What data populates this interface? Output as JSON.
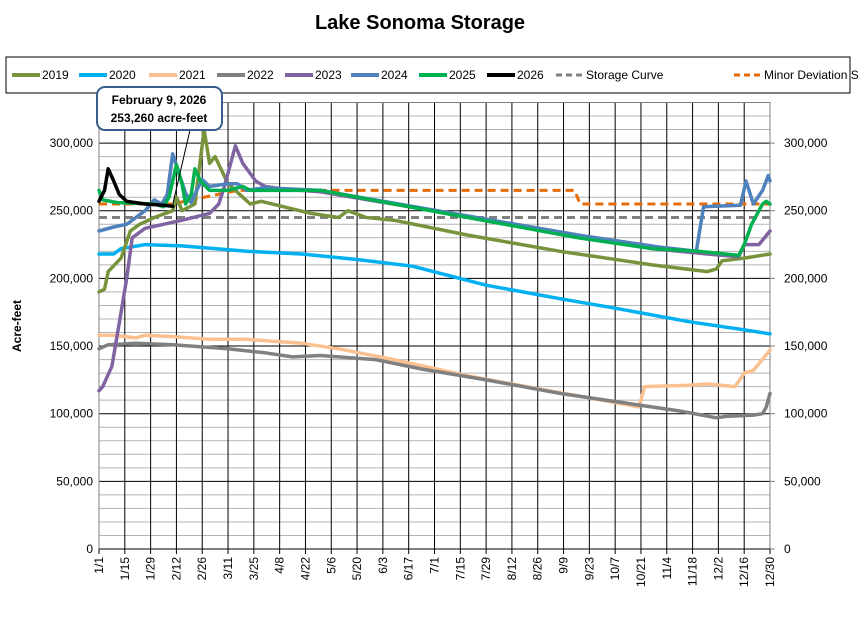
{
  "chart_data": {
    "type": "line",
    "title": "Lake Sonoma Storage",
    "ylabel": "Acre-feet",
    "xlabel": "",
    "ylim": [
      0,
      330000
    ],
    "y_ticks": [
      0,
      50000,
      100000,
      150000,
      200000,
      250000,
      300000
    ],
    "y_tick_labels": [
      "0",
      "50,000",
      "100,000",
      "150,000",
      "200,000",
      "250,000",
      "300,000"
    ],
    "x_unit": "day of year",
    "x_ticks": [
      "1/1",
      "1/15",
      "1/29",
      "2/12",
      "2/26",
      "3/11",
      "3/25",
      "4/8",
      "4/22",
      "5/6",
      "5/20",
      "6/3",
      "6/17",
      "7/1",
      "7/15",
      "7/29",
      "8/12",
      "8/26",
      "9/9",
      "9/23",
      "10/7",
      "10/21",
      "11/4",
      "11/18",
      "12/2",
      "12/16",
      "12/30"
    ],
    "grid": true,
    "legend_position": "top",
    "annotation": {
      "line1": "February 9, 2026",
      "line2": "253,260 acre-feet",
      "x": 40,
      "y": 253260
    },
    "series": [
      {
        "name": "2019",
        "color": "#77933c",
        "dash": false,
        "points": [
          [
            0,
            190000
          ],
          [
            3,
            192000
          ],
          [
            5,
            205000
          ],
          [
            12,
            215000
          ],
          [
            17,
            235000
          ],
          [
            22,
            240000
          ],
          [
            30,
            245000
          ],
          [
            40,
            250000
          ],
          [
            42,
            260000
          ],
          [
            45,
            250000
          ],
          [
            52,
            255000
          ],
          [
            57,
            310000
          ],
          [
            60,
            285000
          ],
          [
            63,
            290000
          ],
          [
            70,
            270000
          ],
          [
            78,
            260000
          ],
          [
            82,
            255000
          ],
          [
            88,
            257000
          ],
          [
            100,
            253000
          ],
          [
            115,
            248000
          ],
          [
            130,
            245000
          ],
          [
            135,
            250000
          ],
          [
            145,
            245000
          ],
          [
            160,
            243000
          ],
          [
            200,
            232000
          ],
          [
            250,
            220000
          ],
          [
            300,
            210000
          ],
          [
            330,
            205000
          ],
          [
            335,
            207000
          ],
          [
            338,
            213000
          ],
          [
            350,
            215000
          ],
          [
            364,
            218000
          ]
        ]
      },
      {
        "name": "2020",
        "color": "#00b0f0",
        "dash": false,
        "points": [
          [
            0,
            218000
          ],
          [
            8,
            218000
          ],
          [
            12,
            222000
          ],
          [
            25,
            225000
          ],
          [
            45,
            224000
          ],
          [
            80,
            220000
          ],
          [
            110,
            218000
          ],
          [
            140,
            214000
          ],
          [
            170,
            209000
          ],
          [
            210,
            195000
          ],
          [
            250,
            185000
          ],
          [
            280,
            178000
          ],
          [
            320,
            168000
          ],
          [
            350,
            162000
          ],
          [
            364,
            159000
          ]
        ]
      },
      {
        "name": "2021",
        "color": "#fac090",
        "dash": false,
        "points": [
          [
            0,
            158000
          ],
          [
            8,
            158000
          ],
          [
            20,
            156000
          ],
          [
            25,
            158000
          ],
          [
            40,
            157000
          ],
          [
            60,
            155000
          ],
          [
            80,
            155000
          ],
          [
            110,
            152000
          ],
          [
            130,
            148000
          ],
          [
            160,
            140000
          ],
          [
            200,
            128000
          ],
          [
            240,
            118000
          ],
          [
            293,
            105000
          ],
          [
            296,
            120000
          ],
          [
            320,
            121000
          ],
          [
            330,
            122000
          ],
          [
            345,
            120000
          ],
          [
            350,
            130000
          ],
          [
            355,
            132000
          ],
          [
            364,
            147000
          ]
        ]
      },
      {
        "name": "2022",
        "color": "#808080",
        "dash": false,
        "points": [
          [
            0,
            148000
          ],
          [
            5,
            151000
          ],
          [
            20,
            152000
          ],
          [
            40,
            151000
          ],
          [
            70,
            148000
          ],
          [
            90,
            145000
          ],
          [
            105,
            142000
          ],
          [
            120,
            143000
          ],
          [
            150,
            140000
          ],
          [
            175,
            133000
          ],
          [
            210,
            125000
          ],
          [
            250,
            115000
          ],
          [
            285,
            108000
          ],
          [
            315,
            102000
          ],
          [
            335,
            97000
          ],
          [
            340,
            98000
          ],
          [
            355,
            99000
          ],
          [
            360,
            100000
          ],
          [
            362,
            105000
          ],
          [
            364,
            115000
          ]
        ]
      },
      {
        "name": "2023",
        "color": "#8064a2",
        "dash": false,
        "points": [
          [
            0,
            117000
          ],
          [
            2,
            120000
          ],
          [
            7,
            135000
          ],
          [
            12,
            175000
          ],
          [
            15,
            200000
          ],
          [
            18,
            230000
          ],
          [
            25,
            237000
          ],
          [
            35,
            240000
          ],
          [
            45,
            243000
          ],
          [
            60,
            248000
          ],
          [
            65,
            255000
          ],
          [
            68,
            268000
          ],
          [
            74,
            298000
          ],
          [
            78,
            285000
          ],
          [
            85,
            272000
          ],
          [
            90,
            268000
          ],
          [
            100,
            266000
          ],
          [
            120,
            264000
          ],
          [
            260,
            232000
          ],
          [
            300,
            222000
          ],
          [
            330,
            218000
          ],
          [
            347,
            216000
          ],
          [
            350,
            225000
          ],
          [
            358,
            225000
          ],
          [
            364,
            235000
          ]
        ]
      },
      {
        "name": "2024",
        "color": "#4f81bd",
        "dash": false,
        "points": [
          [
            0,
            235000
          ],
          [
            8,
            238000
          ],
          [
            15,
            240000
          ],
          [
            20,
            245000
          ],
          [
            25,
            250000
          ],
          [
            30,
            258000
          ],
          [
            34,
            255000
          ],
          [
            37,
            262000
          ],
          [
            40,
            292000
          ],
          [
            44,
            275000
          ],
          [
            47,
            263000
          ],
          [
            50,
            256000
          ],
          [
            53,
            265000
          ],
          [
            56,
            273000
          ],
          [
            60,
            268000
          ],
          [
            70,
            270000
          ],
          [
            75,
            270000
          ],
          [
            80,
            265000
          ],
          [
            90,
            267000
          ],
          [
            120,
            265000
          ],
          [
            260,
            232000
          ],
          [
            305,
            223000
          ],
          [
            324,
            220000
          ],
          [
            328,
            253000
          ],
          [
            348,
            254000
          ],
          [
            351,
            272000
          ],
          [
            355,
            255000
          ],
          [
            360,
            265000
          ],
          [
            363,
            276000
          ],
          [
            364,
            272000
          ]
        ]
      },
      {
        "name": "2025",
        "color": "#00b050",
        "dash": false,
        "points": [
          [
            0,
            265000
          ],
          [
            2,
            258000
          ],
          [
            10,
            256000
          ],
          [
            30,
            255000
          ],
          [
            35,
            253000
          ],
          [
            38,
            260000
          ],
          [
            42,
            284000
          ],
          [
            45,
            270000
          ],
          [
            47,
            255000
          ],
          [
            50,
            262000
          ],
          [
            52,
            281000
          ],
          [
            55,
            272000
          ],
          [
            60,
            265000
          ],
          [
            70,
            265000
          ],
          [
            78,
            268000
          ],
          [
            82,
            265000
          ],
          [
            120,
            265000
          ],
          [
            260,
            230000
          ],
          [
            300,
            222000
          ],
          [
            325,
            220000
          ],
          [
            347,
            217000
          ],
          [
            350,
            225000
          ],
          [
            354,
            240000
          ],
          [
            360,
            255000
          ],
          [
            362,
            257000
          ],
          [
            364,
            255000
          ]
        ]
      },
      {
        "name": "2026",
        "color": "#000000",
        "dash": false,
        "points": [
          [
            0,
            257000
          ],
          [
            3,
            265000
          ],
          [
            5,
            281000
          ],
          [
            8,
            272000
          ],
          [
            11,
            262000
          ],
          [
            15,
            257000
          ],
          [
            25,
            255000
          ],
          [
            35,
            254000
          ],
          [
            40,
            253260
          ]
        ]
      },
      {
        "name": "Storage Curve",
        "color": "#808080",
        "dash": true,
        "points": [
          [
            0,
            245000
          ],
          [
            364,
            245000
          ]
        ]
      },
      {
        "name": "Minor Deviation Storage Curve",
        "color": "#e46c0a",
        "dash": true,
        "points": [
          [
            0,
            255000
          ],
          [
            40,
            255000
          ],
          [
            50,
            258000
          ],
          [
            75,
            265000
          ],
          [
            258,
            265000
          ],
          [
            261,
            255000
          ],
          [
            364,
            255000
          ]
        ]
      }
    ]
  }
}
